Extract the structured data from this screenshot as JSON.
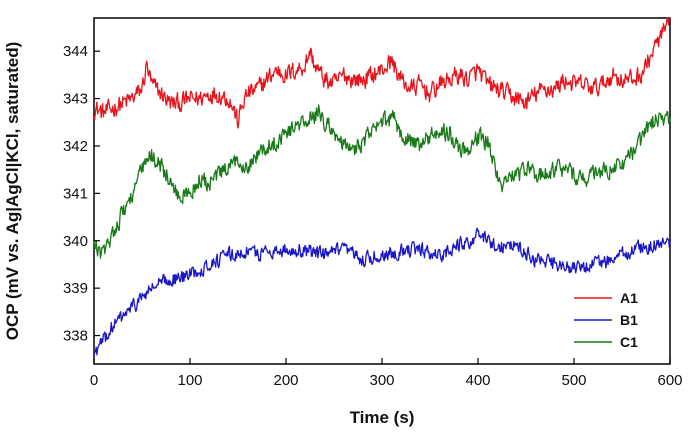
{
  "chart_data": {
    "type": "line",
    "xlabel": "Time (s)",
    "ylabel": "OCP (mV vs. Ag|AgCl|KCl, saturated)",
    "xlim": [
      0,
      600
    ],
    "ylim": [
      337.4,
      344.7
    ],
    "xticks": [
      "0",
      "100",
      "200",
      "300",
      "400",
      "500",
      "600"
    ],
    "yticks": [
      "338",
      "339",
      "340",
      "341",
      "342",
      "343",
      "344"
    ],
    "legend_position": "bottom-right",
    "series": [
      {
        "name": "A1",
        "color": "#e8141b",
        "noise": 0.18,
        "x": [
          0,
          10,
          20,
          30,
          40,
          50,
          55,
          60,
          70,
          80,
          90,
          100,
          110,
          120,
          130,
          140,
          145,
          150,
          155,
          160,
          170,
          180,
          190,
          200,
          210,
          220,
          225,
          230,
          240,
          250,
          260,
          270,
          280,
          290,
          300,
          310,
          320,
          330,
          340,
          350,
          360,
          370,
          380,
          390,
          400,
          410,
          420,
          430,
          440,
          450,
          460,
          470,
          480,
          490,
          500,
          510,
          520,
          530,
          540,
          550,
          560,
          570,
          580,
          590,
          600
        ],
        "y": [
          342.8,
          342.7,
          342.8,
          342.9,
          343.0,
          343.2,
          343.7,
          343.3,
          343.1,
          342.9,
          342.9,
          343.0,
          343.0,
          343.1,
          343.1,
          343.0,
          342.8,
          342.5,
          342.9,
          343.1,
          343.2,
          343.4,
          343.6,
          343.5,
          343.6,
          343.7,
          344.0,
          343.7,
          343.4,
          343.3,
          343.5,
          343.4,
          343.4,
          343.5,
          343.6,
          343.8,
          343.4,
          343.2,
          343.3,
          343.1,
          343.3,
          343.4,
          343.5,
          343.4,
          343.6,
          343.3,
          343.2,
          343.1,
          343.0,
          342.9,
          343.1,
          343.2,
          343.2,
          343.4,
          343.3,
          343.3,
          343.2,
          343.3,
          343.5,
          343.4,
          343.4,
          343.5,
          343.9,
          344.3,
          344.6
        ]
      },
      {
        "name": "B1",
        "color": "#1b17c4",
        "noise": 0.14,
        "x": [
          0,
          10,
          20,
          30,
          40,
          50,
          60,
          70,
          80,
          90,
          100,
          110,
          120,
          130,
          140,
          150,
          160,
          170,
          180,
          200,
          220,
          240,
          260,
          280,
          300,
          320,
          340,
          360,
          380,
          400,
          410,
          420,
          440,
          460,
          480,
          500,
          520,
          540,
          560,
          580,
          600
        ],
        "y": [
          337.6,
          337.9,
          338.2,
          338.4,
          338.6,
          338.8,
          339.0,
          339.1,
          339.2,
          339.2,
          339.3,
          339.4,
          339.5,
          339.6,
          339.7,
          339.7,
          339.8,
          339.7,
          339.8,
          339.8,
          339.8,
          339.7,
          339.8,
          339.6,
          339.7,
          339.8,
          339.8,
          339.7,
          339.9,
          340.1,
          340.0,
          339.9,
          339.9,
          339.6,
          339.5,
          339.4,
          339.5,
          339.6,
          339.8,
          339.9,
          339.9
        ]
      },
      {
        "name": "C1",
        "color": "#1a7a1a",
        "noise": 0.17,
        "x": [
          0,
          10,
          20,
          30,
          40,
          50,
          60,
          70,
          80,
          90,
          100,
          110,
          120,
          130,
          140,
          150,
          160,
          170,
          180,
          190,
          200,
          210,
          220,
          230,
          235,
          240,
          250,
          260,
          270,
          280,
          290,
          300,
          310,
          320,
          330,
          340,
          350,
          360,
          370,
          380,
          390,
          400,
          410,
          420,
          425,
          430,
          440,
          450,
          460,
          470,
          480,
          490,
          500,
          510,
          520,
          530,
          540,
          550,
          560,
          570,
          580,
          590,
          600
        ],
        "y": [
          339.9,
          339.7,
          340.2,
          340.6,
          341.0,
          341.5,
          341.8,
          341.6,
          341.2,
          340.9,
          341.0,
          341.3,
          341.2,
          341.4,
          341.5,
          341.7,
          341.6,
          341.8,
          342.0,
          342.1,
          342.3,
          342.4,
          342.5,
          342.6,
          342.8,
          342.5,
          342.3,
          342.0,
          341.9,
          342.1,
          342.3,
          342.5,
          342.6,
          342.3,
          342.1,
          342.0,
          342.2,
          342.3,
          342.3,
          342.0,
          341.9,
          342.2,
          342.1,
          341.4,
          341.2,
          341.3,
          341.4,
          341.5,
          341.4,
          341.4,
          341.5,
          341.5,
          341.4,
          341.3,
          341.4,
          341.5,
          341.5,
          341.6,
          341.8,
          342.1,
          342.5,
          342.6,
          342.5
        ]
      }
    ]
  }
}
